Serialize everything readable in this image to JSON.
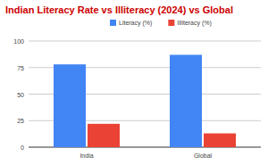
{
  "chart_data": {
    "type": "bar",
    "title": "Indian Literacy Rate vs Illiteracy (2024) vs Global",
    "categories": [
      "India",
      "Global"
    ],
    "series": [
      {
        "name": "Literacy (%)",
        "color": "#4285f4",
        "values": [
          78,
          87
        ]
      },
      {
        "name": "Illiteracy (%)",
        "color": "#ea4335",
        "values": [
          22,
          13
        ]
      }
    ],
    "ylim": [
      0,
      100
    ],
    "yticks": [
      0,
      25,
      50,
      75,
      100
    ],
    "grid": true,
    "legend": "top"
  }
}
